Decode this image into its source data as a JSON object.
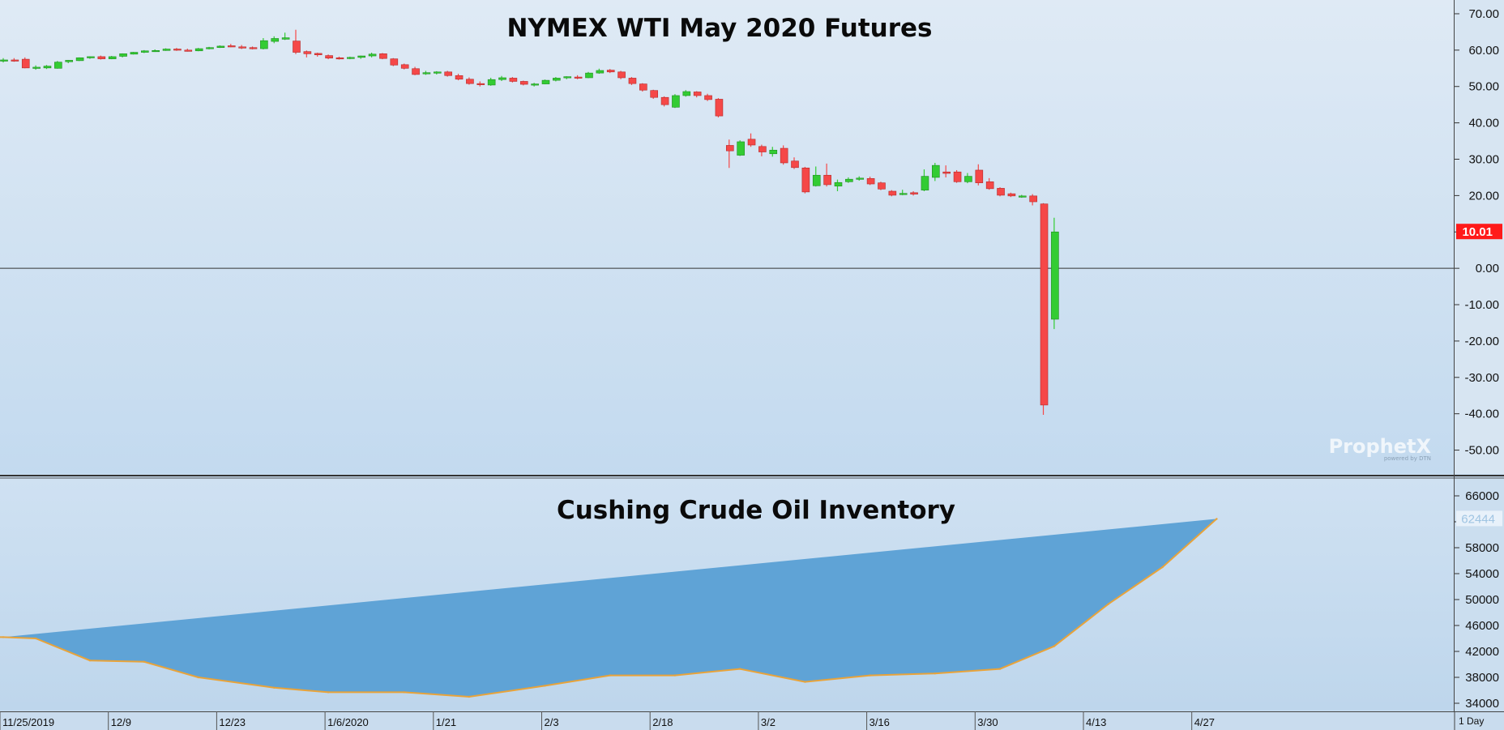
{
  "watermark": {
    "brand": "ProphetX",
    "tagline": "powered by DTN"
  },
  "timeframe_label": "1 Day",
  "x_axis": {
    "tick_labels": [
      "11/25/2019",
      "12/9",
      "12/23",
      "1/6/2020",
      "1/21",
      "2/3",
      "2/18",
      "3/2",
      "3/16",
      "3/30",
      "4/13",
      "4/27"
    ],
    "tick_index": [
      0,
      10,
      20,
      30,
      40,
      50,
      60,
      70,
      80,
      90,
      100,
      110
    ]
  },
  "colors": {
    "up": "#33cc33",
    "down": "#f54848",
    "area_fill": "#5fa3d6",
    "inventory_line": "#e8a33a",
    "last_price_badge": "#ff1a1a"
  },
  "chart_data": [
    {
      "type": "candlestick",
      "title": "NYMEX WTI May 2020 Futures",
      "ylim": [
        -55,
        72
      ],
      "yticks": [
        "70.00",
        "60.00",
        "50.00",
        "40.00",
        "30.00",
        "20.00",
        "10.00",
        "0.00",
        "-10.00",
        "-20.00",
        "-30.00",
        "-40.00",
        "-50.00"
      ],
      "zero_line": 0,
      "last_price": "10.01",
      "series": [
        {
          "date": "11/25/2019",
          "o": 57.2,
          "h": 57.8,
          "l": 56.6,
          "c": 57.3
        },
        {
          "date": "11/26/2019",
          "o": 57.3,
          "h": 57.8,
          "l": 56.8,
          "c": 57.1
        },
        {
          "date": "11/27/2019",
          "o": 57.5,
          "h": 58.0,
          "l": 55.0,
          "c": 55.1
        },
        {
          "date": "11/29/2019",
          "o": 55.2,
          "h": 55.8,
          "l": 54.6,
          "c": 55.3
        },
        {
          "date": "12/2/2019",
          "o": 55.1,
          "h": 55.9,
          "l": 54.8,
          "c": 55.6
        },
        {
          "date": "12/3/2019",
          "o": 55.0,
          "h": 57.0,
          "l": 54.9,
          "c": 56.7
        },
        {
          "date": "12/4/2019",
          "o": 56.8,
          "h": 57.3,
          "l": 56.4,
          "c": 57.2
        },
        {
          "date": "12/5/2019",
          "o": 57.1,
          "h": 58.0,
          "l": 57.0,
          "c": 57.9
        },
        {
          "date": "12/6/2019",
          "o": 58.0,
          "h": 58.3,
          "l": 57.6,
          "c": 58.2
        },
        {
          "date": "12/9/2019",
          "o": 58.2,
          "h": 58.5,
          "l": 57.4,
          "c": 57.6
        },
        {
          "date": "12/10/2019",
          "o": 57.6,
          "h": 58.4,
          "l": 57.5,
          "c": 58.2
        },
        {
          "date": "12/11/2019",
          "o": 58.3,
          "h": 59.1,
          "l": 58.0,
          "c": 59.0
        },
        {
          "date": "12/12/2019",
          "o": 58.9,
          "h": 59.5,
          "l": 58.8,
          "c": 59.4
        },
        {
          "date": "12/13/2019",
          "o": 59.4,
          "h": 60.0,
          "l": 59.2,
          "c": 59.8
        },
        {
          "date": "12/16/2019",
          "o": 59.8,
          "h": 60.2,
          "l": 59.5,
          "c": 59.9
        },
        {
          "date": "12/17/2019",
          "o": 59.9,
          "h": 60.5,
          "l": 59.8,
          "c": 60.3
        },
        {
          "date": "12/18/2019",
          "o": 60.3,
          "h": 60.6,
          "l": 59.8,
          "c": 60.0
        },
        {
          "date": "12/19/2019",
          "o": 60.0,
          "h": 60.4,
          "l": 59.6,
          "c": 59.8
        },
        {
          "date": "12/20/2019",
          "o": 59.8,
          "h": 60.6,
          "l": 59.7,
          "c": 60.4
        },
        {
          "date": "12/23/2019",
          "o": 60.4,
          "h": 60.9,
          "l": 60.2,
          "c": 60.7
        },
        {
          "date": "12/24/2019",
          "o": 60.7,
          "h": 61.3,
          "l": 60.6,
          "c": 61.1
        },
        {
          "date": "12/26/2019",
          "o": 61.2,
          "h": 61.7,
          "l": 60.8,
          "c": 60.9
        },
        {
          "date": "12/27/2019",
          "o": 60.9,
          "h": 61.4,
          "l": 60.3,
          "c": 60.6
        },
        {
          "date": "12/30/2019",
          "o": 60.7,
          "h": 61.0,
          "l": 60.2,
          "c": 60.4
        },
        {
          "date": "12/31/2019",
          "o": 60.4,
          "h": 63.3,
          "l": 60.2,
          "c": 62.6
        },
        {
          "date": "1/2/2020",
          "o": 62.4,
          "h": 63.8,
          "l": 61.9,
          "c": 63.2
        },
        {
          "date": "1/3/2020",
          "o": 63.0,
          "h": 64.8,
          "l": 62.8,
          "c": 63.4
        },
        {
          "date": "1/6/2020",
          "o": 62.5,
          "h": 65.6,
          "l": 58.9,
          "c": 59.4
        },
        {
          "date": "1/7/2020",
          "o": 59.6,
          "h": 59.9,
          "l": 58.0,
          "c": 59.0
        },
        {
          "date": "1/8/2020",
          "o": 59.1,
          "h": 59.3,
          "l": 58.2,
          "c": 58.7
        },
        {
          "date": "1/9/2020",
          "o": 58.5,
          "h": 58.8,
          "l": 57.5,
          "c": 57.8
        },
        {
          "date": "1/10/2020",
          "o": 57.9,
          "h": 58.2,
          "l": 57.4,
          "c": 57.7
        },
        {
          "date": "1/13/2020",
          "o": 57.7,
          "h": 58.2,
          "l": 57.5,
          "c": 58.0
        },
        {
          "date": "1/14/2020",
          "o": 58.0,
          "h": 58.5,
          "l": 57.6,
          "c": 58.4
        },
        {
          "date": "1/15/2020",
          "o": 58.4,
          "h": 59.3,
          "l": 58.0,
          "c": 58.9
        },
        {
          "date": "1/16/2020",
          "o": 59.0,
          "h": 59.2,
          "l": 57.5,
          "c": 57.7
        },
        {
          "date": "1/17/2020",
          "o": 57.6,
          "h": 57.8,
          "l": 55.6,
          "c": 55.9
        },
        {
          "date": "1/21/2020",
          "o": 56.0,
          "h": 56.3,
          "l": 54.7,
          "c": 55.0
        },
        {
          "date": "1/22/2020",
          "o": 54.9,
          "h": 55.4,
          "l": 53.1,
          "c": 53.3
        },
        {
          "date": "1/23/2020",
          "o": 53.5,
          "h": 54.3,
          "l": 53.2,
          "c": 53.8
        },
        {
          "date": "1/24/2020",
          "o": 53.7,
          "h": 54.2,
          "l": 53.3,
          "c": 54.0
        },
        {
          "date": "1/27/2020",
          "o": 54.0,
          "h": 54.3,
          "l": 52.7,
          "c": 53.0
        },
        {
          "date": "1/28/2020",
          "o": 53.0,
          "h": 53.5,
          "l": 51.7,
          "c": 52.0
        },
        {
          "date": "1/29/2020",
          "o": 52.0,
          "h": 52.5,
          "l": 50.5,
          "c": 50.8
        },
        {
          "date": "1/30/2020",
          "o": 50.8,
          "h": 51.4,
          "l": 50.0,
          "c": 50.5
        },
        {
          "date": "1/31/2020",
          "o": 50.4,
          "h": 52.4,
          "l": 50.2,
          "c": 51.9
        },
        {
          "date": "2/3/2020",
          "o": 51.9,
          "h": 52.9,
          "l": 51.5,
          "c": 52.4
        },
        {
          "date": "2/4/2020",
          "o": 52.3,
          "h": 52.6,
          "l": 51.1,
          "c": 51.4
        },
        {
          "date": "2/5/2020",
          "o": 51.4,
          "h": 51.6,
          "l": 50.3,
          "c": 50.6
        },
        {
          "date": "2/6/2020",
          "o": 50.5,
          "h": 51.0,
          "l": 50.0,
          "c": 50.7
        },
        {
          "date": "2/7/2020",
          "o": 50.7,
          "h": 51.9,
          "l": 50.6,
          "c": 51.7
        },
        {
          "date": "2/10/2020",
          "o": 51.7,
          "h": 52.6,
          "l": 51.4,
          "c": 52.3
        },
        {
          "date": "2/11/2020",
          "o": 52.4,
          "h": 52.8,
          "l": 52.0,
          "c": 52.7
        },
        {
          "date": "2/12/2020",
          "o": 52.6,
          "h": 53.1,
          "l": 52.0,
          "c": 52.3
        },
        {
          "date": "2/13/2020",
          "o": 52.4,
          "h": 54.0,
          "l": 52.3,
          "c": 53.7
        },
        {
          "date": "2/14/2020",
          "o": 53.7,
          "h": 54.9,
          "l": 53.5,
          "c": 54.4
        },
        {
          "date": "2/18/2020",
          "o": 54.5,
          "h": 54.8,
          "l": 53.7,
          "c": 54.0
        },
        {
          "date": "2/19/2020",
          "o": 54.0,
          "h": 54.3,
          "l": 52.0,
          "c": 52.4
        },
        {
          "date": "2/20/2020",
          "o": 52.3,
          "h": 52.6,
          "l": 50.4,
          "c": 50.8
        },
        {
          "date": "2/21/2020",
          "o": 50.7,
          "h": 50.9,
          "l": 48.6,
          "c": 49.0
        },
        {
          "date": "2/24/2020",
          "o": 48.9,
          "h": 49.1,
          "l": 46.6,
          "c": 47.0
        },
        {
          "date": "2/25/2020",
          "o": 47.0,
          "h": 47.3,
          "l": 44.5,
          "c": 45.0
        },
        {
          "date": "2/26/2020",
          "o": 44.3,
          "h": 47.9,
          "l": 44.1,
          "c": 47.5
        },
        {
          "date": "2/27/2020",
          "o": 47.5,
          "h": 49.0,
          "l": 47.2,
          "c": 48.6
        },
        {
          "date": "2/28/2020",
          "o": 48.5,
          "h": 48.7,
          "l": 47.0,
          "c": 47.5
        },
        {
          "date": "3/2/2020",
          "o": 47.5,
          "h": 48.0,
          "l": 46.0,
          "c": 46.4
        },
        {
          "date": "3/3/2020",
          "o": 46.5,
          "h": 46.8,
          "l": 41.5,
          "c": 41.9
        },
        {
          "date": "3/9/2020",
          "o": 33.8,
          "h": 35.4,
          "l": 27.6,
          "c": 32.3
        },
        {
          "date": "3/10/2020",
          "o": 31.1,
          "h": 35.2,
          "l": 30.9,
          "c": 34.8
        },
        {
          "date": "3/11/2020",
          "o": 35.5,
          "h": 37.1,
          "l": 33.4,
          "c": 33.9
        },
        {
          "date": "3/12/2020",
          "o": 33.5,
          "h": 34.0,
          "l": 30.8,
          "c": 32.0
        },
        {
          "date": "3/13/2020",
          "o": 31.5,
          "h": 33.4,
          "l": 30.7,
          "c": 32.5
        },
        {
          "date": "3/16/2020",
          "o": 33.0,
          "h": 33.8,
          "l": 28.5,
          "c": 29.0
        },
        {
          "date": "3/17/2020",
          "o": 29.5,
          "h": 30.5,
          "l": 27.3,
          "c": 27.7
        },
        {
          "date": "3/18/2020",
          "o": 27.6,
          "h": 27.9,
          "l": 20.6,
          "c": 21.0
        },
        {
          "date": "3/19/2020",
          "o": 22.7,
          "h": 28.0,
          "l": 22.5,
          "c": 25.6
        },
        {
          "date": "3/20/2020",
          "o": 25.6,
          "h": 28.8,
          "l": 22.5,
          "c": 23.0
        },
        {
          "date": "3/23/2020",
          "o": 22.6,
          "h": 24.4,
          "l": 21.2,
          "c": 23.6
        },
        {
          "date": "3/24/2020",
          "o": 23.8,
          "h": 25.0,
          "l": 23.5,
          "c": 24.5
        },
        {
          "date": "3/25/2020",
          "o": 24.5,
          "h": 25.3,
          "l": 24.1,
          "c": 24.8
        },
        {
          "date": "3/26/2020",
          "o": 24.7,
          "h": 25.2,
          "l": 22.9,
          "c": 23.2
        },
        {
          "date": "3/27/2020",
          "o": 23.5,
          "h": 23.8,
          "l": 21.5,
          "c": 21.8
        },
        {
          "date": "3/30/2020",
          "o": 21.2,
          "h": 21.5,
          "l": 19.8,
          "c": 20.1
        },
        {
          "date": "3/31/2020",
          "o": 20.3,
          "h": 21.6,
          "l": 20.1,
          "c": 20.6
        },
        {
          "date": "4/1/2020",
          "o": 20.8,
          "h": 21.2,
          "l": 20.0,
          "c": 20.4
        },
        {
          "date": "4/2/2020",
          "o": 21.5,
          "h": 27.2,
          "l": 21.2,
          "c": 25.3
        },
        {
          "date": "4/3/2020",
          "o": 25.0,
          "h": 29.0,
          "l": 24.0,
          "c": 28.3
        },
        {
          "date": "4/6/2020",
          "o": 26.5,
          "h": 28.3,
          "l": 25.0,
          "c": 26.1
        },
        {
          "date": "4/7/2020",
          "o": 26.5,
          "h": 27.0,
          "l": 23.5,
          "c": 23.8
        },
        {
          "date": "4/8/2020",
          "o": 23.8,
          "h": 26.2,
          "l": 23.4,
          "c": 25.3
        },
        {
          "date": "4/9/2020",
          "o": 27.0,
          "h": 28.6,
          "l": 22.8,
          "c": 23.5
        },
        {
          "date": "4/13/2020",
          "o": 23.8,
          "h": 24.8,
          "l": 21.6,
          "c": 21.9
        },
        {
          "date": "4/14/2020",
          "o": 22.0,
          "h": 22.3,
          "l": 19.8,
          "c": 20.1
        },
        {
          "date": "4/15/2020",
          "o": 20.5,
          "h": 20.8,
          "l": 19.6,
          "c": 19.9
        },
        {
          "date": "4/16/2020",
          "o": 19.6,
          "h": 20.2,
          "l": 19.4,
          "c": 19.9
        },
        {
          "date": "4/17/2020",
          "o": 19.9,
          "h": 20.4,
          "l": 17.3,
          "c": 18.3
        },
        {
          "date": "4/20/2020",
          "o": 17.7,
          "h": 17.9,
          "l": -40.3,
          "c": -37.6
        },
        {
          "date": "4/21/2020",
          "o": -14.0,
          "h": 13.9,
          "l": -16.7,
          "c": 10.01
        }
      ]
    },
    {
      "type": "area",
      "title": "Cushing Crude Oil Inventory",
      "ylim": [
        33000,
        68000
      ],
      "yticks": [
        "66000",
        "62000",
        "58000",
        "54000",
        "50000",
        "46000",
        "42000",
        "38000",
        "34000"
      ],
      "last_value": "62444",
      "x_index": [
        0,
        3,
        8,
        13,
        18,
        25,
        30,
        37,
        43,
        50,
        56,
        62,
        68,
        74,
        80,
        86,
        92,
        97,
        102,
        107,
        112
      ],
      "values": [
        44200,
        44000,
        40600,
        40400,
        38000,
        36400,
        35700,
        35700,
        35000,
        36700,
        38300,
        38300,
        39300,
        37300,
        38300,
        38600,
        39300,
        42800,
        49300,
        55000,
        62444
      ]
    }
  ]
}
